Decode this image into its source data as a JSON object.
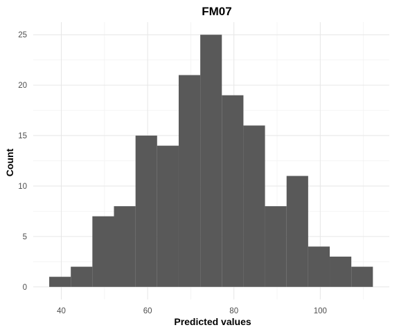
{
  "chart_data": {
    "type": "bar",
    "title": "FM07",
    "xlabel": "Predicted values",
    "ylabel": "Count",
    "bins": [
      {
        "x0": 37.2,
        "x1": 42.2,
        "count": 1
      },
      {
        "x0": 42.2,
        "x1": 47.2,
        "count": 2
      },
      {
        "x0": 47.2,
        "x1": 52.2,
        "count": 7
      },
      {
        "x0": 52.2,
        "x1": 57.2,
        "count": 8
      },
      {
        "x0": 57.2,
        "x1": 62.2,
        "count": 15
      },
      {
        "x0": 62.2,
        "x1": 67.2,
        "count": 14
      },
      {
        "x0": 67.2,
        "x1": 72.2,
        "count": 21
      },
      {
        "x0": 72.2,
        "x1": 77.2,
        "count": 25
      },
      {
        "x0": 77.2,
        "x1": 82.2,
        "count": 19
      },
      {
        "x0": 82.2,
        "x1": 87.2,
        "count": 16
      },
      {
        "x0": 87.2,
        "x1": 92.2,
        "count": 8
      },
      {
        "x0": 92.2,
        "x1": 97.2,
        "count": 11
      },
      {
        "x0": 97.2,
        "x1": 102.2,
        "count": 4
      },
      {
        "x0": 102.2,
        "x1": 107.2,
        "count": 3
      },
      {
        "x0": 107.2,
        "x1": 112.2,
        "count": 2
      }
    ],
    "xlim": [
      33.5,
      116
    ],
    "ylim": [
      -1.25,
      26.25
    ],
    "x_ticks": [
      40,
      60,
      80,
      100
    ],
    "x_tick_labels": [
      "40",
      "60",
      "80",
      "100"
    ],
    "y_ticks": [
      0,
      5,
      10,
      15,
      20,
      25
    ],
    "y_tick_labels": [
      "0",
      "5",
      "10",
      "15",
      "20",
      "25"
    ],
    "grid": true,
    "bar_color": "#595959",
    "grid_color": "#e6e6e6"
  }
}
